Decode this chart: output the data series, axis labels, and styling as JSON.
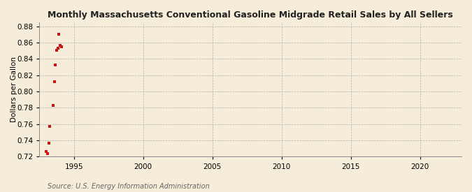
{
  "title": "Monthly Massachusetts Conventional Gasoline Midgrade Retail Sales by All Sellers",
  "ylabel": "Dollars per Gallon",
  "source": "Source: U.S. Energy Information Administration",
  "background_color": "#f5edda",
  "plot_bg_color": "#f5edda",
  "marker_color": "#cc1111",
  "grid_color": "#aaaaaa",
  "xlim": [
    1992.5,
    2023
  ],
  "ylim": [
    0.72,
    0.885
  ],
  "xticks": [
    1995,
    2000,
    2005,
    2010,
    2015,
    2020
  ],
  "yticks": [
    0.72,
    0.74,
    0.76,
    0.78,
    0.8,
    0.82,
    0.84,
    0.86,
    0.88
  ],
  "data_x": [
    1993.0,
    1993.08,
    1993.17,
    1993.25,
    1993.5,
    1993.58,
    1993.67,
    1993.75,
    1993.83,
    1993.92,
    1994.0,
    1994.08
  ],
  "data_y": [
    0.726,
    0.724,
    0.737,
    0.757,
    0.783,
    0.812,
    0.833,
    0.851,
    0.853,
    0.87,
    0.857,
    0.855
  ]
}
